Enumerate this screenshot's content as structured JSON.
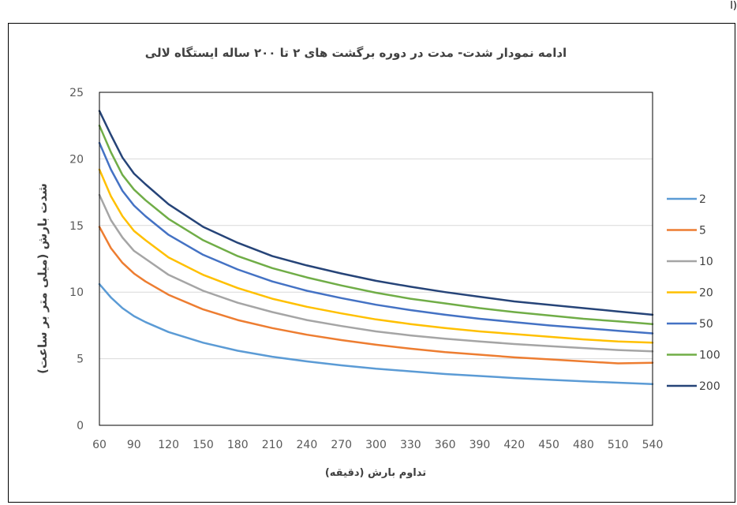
{
  "page": {
    "corner_mark": "ا)"
  },
  "chart_data": {
    "type": "line",
    "title": "ادامه نمودار شدت- مدت در دوره برگشت های ۲ تا ۲۰۰ ساله ایستگاه لالی",
    "xlabel": "تداوم بارش (دقیقه)",
    "ylabel": "شدت بارش (میلی متر بر ساعت)",
    "xlim": [
      60,
      540
    ],
    "ylim": [
      0,
      25
    ],
    "x_ticks": [
      60,
      90,
      120,
      150,
      180,
      210,
      240,
      270,
      300,
      330,
      360,
      390,
      420,
      450,
      480,
      510,
      540
    ],
    "y_ticks": [
      0,
      5,
      10,
      15,
      20,
      25
    ],
    "grid": "horizontal",
    "legend_position": "right",
    "x": [
      60,
      70,
      80,
      90,
      100,
      120,
      150,
      180,
      210,
      240,
      270,
      300,
      330,
      360,
      390,
      420,
      450,
      480,
      510,
      540
    ],
    "series": [
      {
        "name": "2",
        "color": "#5B9BD5",
        "values": [
          10.6,
          9.6,
          8.8,
          8.2,
          7.75,
          7.0,
          6.2,
          5.6,
          5.15,
          4.8,
          4.5,
          4.25,
          4.05,
          3.85,
          3.7,
          3.55,
          3.42,
          3.3,
          3.2,
          3.1
        ]
      },
      {
        "name": "5",
        "color": "#ED7D31",
        "values": [
          14.9,
          13.3,
          12.2,
          11.4,
          10.8,
          9.8,
          8.7,
          7.9,
          7.3,
          6.8,
          6.4,
          6.05,
          5.75,
          5.5,
          5.3,
          5.1,
          4.95,
          4.8,
          4.65,
          4.7
        ]
      },
      {
        "name": "10",
        "color": "#A5A5A5",
        "values": [
          17.3,
          15.4,
          14.1,
          13.1,
          12.5,
          11.3,
          10.1,
          9.2,
          8.5,
          7.9,
          7.45,
          7.05,
          6.75,
          6.5,
          6.3,
          6.1,
          5.95,
          5.8,
          5.65,
          5.55
        ]
      },
      {
        "name": "20",
        "color": "#FFC000",
        "values": [
          19.2,
          17.2,
          15.7,
          14.6,
          13.9,
          12.6,
          11.3,
          10.3,
          9.5,
          8.9,
          8.4,
          7.95,
          7.6,
          7.3,
          7.05,
          6.85,
          6.65,
          6.45,
          6.3,
          6.2
        ]
      },
      {
        "name": "50",
        "color": "#4472C4",
        "values": [
          21.2,
          19.2,
          17.6,
          16.5,
          15.7,
          14.3,
          12.8,
          11.7,
          10.8,
          10.1,
          9.55,
          9.05,
          8.65,
          8.3,
          8.0,
          7.75,
          7.5,
          7.3,
          7.1,
          6.9
        ]
      },
      {
        "name": "100",
        "color": "#70AD47",
        "values": [
          22.5,
          20.5,
          18.8,
          17.7,
          16.9,
          15.5,
          13.9,
          12.7,
          11.8,
          11.1,
          10.5,
          9.95,
          9.5,
          9.15,
          8.8,
          8.5,
          8.25,
          8.0,
          7.8,
          7.6
        ]
      },
      {
        "name": "200",
        "color": "#264478",
        "values": [
          23.6,
          21.8,
          20.1,
          18.9,
          18.1,
          16.6,
          14.9,
          13.7,
          12.7,
          12.0,
          11.4,
          10.85,
          10.4,
          10.0,
          9.65,
          9.3,
          9.05,
          8.8,
          8.55,
          8.3
        ]
      }
    ]
  }
}
